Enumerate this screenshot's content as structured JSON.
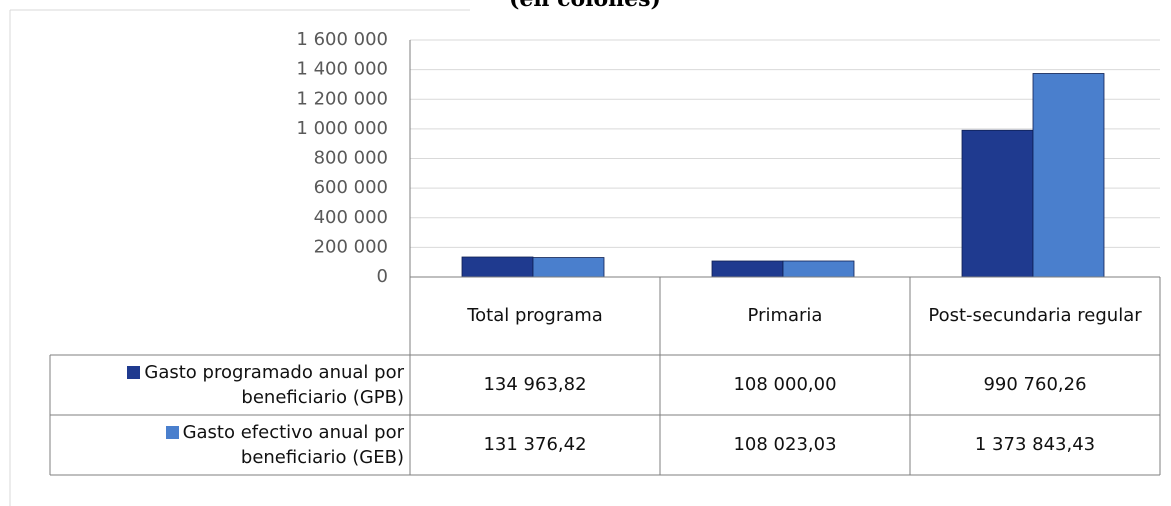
{
  "chart_data": {
    "type": "bar",
    "subtitle": "(en colones)",
    "categories": [
      "Total programa",
      "Primaria",
      "Post-secundaria regular"
    ],
    "series": [
      {
        "name": "Gasto programado anual por beneficiario (GPB)",
        "color": "#1f3a8f",
        "values": [
          134963.82,
          108000.0,
          990760.26
        ],
        "value_labels": [
          "134 963,82",
          "108 000,00",
          "990 760,26"
        ]
      },
      {
        "name": "Gasto efectivo anual por beneficiario (GEB)",
        "color": "#4a7fcd",
        "values": [
          131376.42,
          108023.03,
          1373843.43
        ],
        "value_labels": [
          "131 376,42",
          "108 023,03",
          "1 373 843,43"
        ]
      }
    ],
    "ylim": [
      0,
      1600000
    ],
    "yticks": [
      0,
      {
        "value": 200000,
        "label": "200 000"
      },
      {
        "value": 400000,
        "label": "400 000"
      },
      {
        "value": 600000,
        "label": "600 000"
      },
      {
        "value": 800000,
        "label": "800 000"
      },
      {
        "value": 1000000,
        "label": "1 000 000"
      },
      {
        "value": 1200000,
        "label": "1 200 000"
      },
      {
        "value": 1400000,
        "label": "1 400 000"
      },
      {
        "value": 1600000,
        "label": "1 600 000"
      }
    ],
    "grid": true,
    "data_table": true
  }
}
